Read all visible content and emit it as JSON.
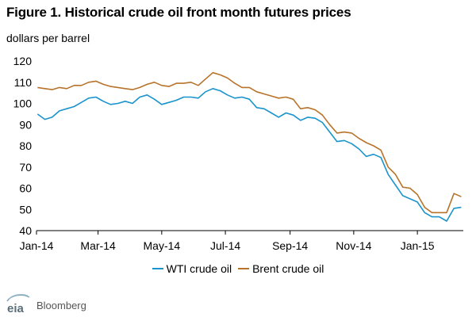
{
  "chart_data": {
    "type": "line",
    "title": "Figure 1. Historical crude oil front month futures prices",
    "ylabel": "dollars per barrel",
    "xlabel": "",
    "ylim": [
      40,
      120
    ],
    "yticks": [
      40,
      50,
      60,
      70,
      80,
      90,
      100,
      110,
      120
    ],
    "xlim": [
      "2014-01-01",
      "2015-02-14"
    ],
    "xticks": [
      {
        "date": "2014-01-01",
        "label": "Jan-14"
      },
      {
        "date": "2014-03-01",
        "label": "Mar-14"
      },
      {
        "date": "2014-05-01",
        "label": "May-14"
      },
      {
        "date": "2014-07-01",
        "label": "Jul-14"
      },
      {
        "date": "2014-09-01",
        "label": "Sep-14"
      },
      {
        "date": "2014-11-01",
        "label": "Nov-14"
      },
      {
        "date": "2015-01-01",
        "label": "Jan-15"
      }
    ],
    "grid": false,
    "legend_position": "bottom",
    "series": [
      {
        "name": "WTI crude oil",
        "color": "#1a94cc",
        "x": [
          "2014-01-02",
          "2014-01-09",
          "2014-01-16",
          "2014-01-23",
          "2014-01-30",
          "2014-02-06",
          "2014-02-13",
          "2014-02-20",
          "2014-02-27",
          "2014-03-06",
          "2014-03-13",
          "2014-03-20",
          "2014-03-27",
          "2014-04-03",
          "2014-04-10",
          "2014-04-17",
          "2014-04-24",
          "2014-05-01",
          "2014-05-08",
          "2014-05-15",
          "2014-05-22",
          "2014-05-29",
          "2014-06-05",
          "2014-06-12",
          "2014-06-19",
          "2014-06-26",
          "2014-07-03",
          "2014-07-10",
          "2014-07-17",
          "2014-07-24",
          "2014-07-31",
          "2014-08-07",
          "2014-08-14",
          "2014-08-21",
          "2014-08-28",
          "2014-09-04",
          "2014-09-11",
          "2014-09-18",
          "2014-09-25",
          "2014-10-02",
          "2014-10-09",
          "2014-10-16",
          "2014-10-23",
          "2014-10-30",
          "2014-11-06",
          "2014-11-13",
          "2014-11-20",
          "2014-11-27",
          "2014-12-04",
          "2014-12-11",
          "2014-12-18",
          "2014-12-25",
          "2015-01-01",
          "2015-01-08",
          "2015-01-15",
          "2015-01-22",
          "2015-01-29",
          "2015-02-05",
          "2015-02-12"
        ],
        "values": [
          95.0,
          92.5,
          93.5,
          96.5,
          97.5,
          98.5,
          100.5,
          102.5,
          103.0,
          101.0,
          99.5,
          100.0,
          101.0,
          100.0,
          103.0,
          104.0,
          102.0,
          99.5,
          100.5,
          101.5,
          103.0,
          103.0,
          102.5,
          105.5,
          107.0,
          106.0,
          104.0,
          102.5,
          103.0,
          102.0,
          98.0,
          97.5,
          95.5,
          93.5,
          95.5,
          94.5,
          92.0,
          93.5,
          93.0,
          91.0,
          86.5,
          82.0,
          82.5,
          81.0,
          78.5,
          75.0,
          76.0,
          74.5,
          66.5,
          61.5,
          56.5,
          55.0,
          53.5,
          48.5,
          46.5,
          46.5,
          44.5,
          50.5,
          51.0
        ]
      },
      {
        "name": "Brent crude oil",
        "color": "#b8732a",
        "x": [
          "2014-01-02",
          "2014-01-09",
          "2014-01-16",
          "2014-01-23",
          "2014-01-30",
          "2014-02-06",
          "2014-02-13",
          "2014-02-20",
          "2014-02-27",
          "2014-03-06",
          "2014-03-13",
          "2014-03-20",
          "2014-03-27",
          "2014-04-03",
          "2014-04-10",
          "2014-04-17",
          "2014-04-24",
          "2014-05-01",
          "2014-05-08",
          "2014-05-15",
          "2014-05-22",
          "2014-05-29",
          "2014-06-05",
          "2014-06-12",
          "2014-06-19",
          "2014-06-26",
          "2014-07-03",
          "2014-07-10",
          "2014-07-17",
          "2014-07-24",
          "2014-07-31",
          "2014-08-07",
          "2014-08-14",
          "2014-08-21",
          "2014-08-28",
          "2014-09-04",
          "2014-09-11",
          "2014-09-18",
          "2014-09-25",
          "2014-10-02",
          "2014-10-09",
          "2014-10-16",
          "2014-10-23",
          "2014-10-30",
          "2014-11-06",
          "2014-11-13",
          "2014-11-20",
          "2014-11-27",
          "2014-12-04",
          "2014-12-11",
          "2014-12-18",
          "2014-12-25",
          "2015-01-01",
          "2015-01-08",
          "2015-01-15",
          "2015-01-22",
          "2015-01-29",
          "2015-02-05",
          "2015-02-12"
        ],
        "values": [
          107.5,
          107.0,
          106.5,
          107.5,
          107.0,
          108.5,
          108.5,
          110.0,
          110.5,
          109.0,
          108.0,
          107.5,
          107.0,
          106.5,
          107.5,
          109.0,
          110.0,
          108.5,
          108.0,
          109.5,
          109.5,
          110.0,
          108.5,
          111.5,
          114.5,
          113.5,
          112.0,
          109.5,
          107.5,
          107.5,
          105.5,
          104.5,
          103.5,
          102.5,
          103.0,
          102.0,
          97.5,
          98.0,
          97.0,
          94.5,
          90.0,
          86.0,
          86.5,
          86.0,
          83.5,
          81.5,
          80.0,
          78.0,
          70.0,
          66.5,
          60.5,
          60.0,
          57.0,
          51.0,
          48.5,
          48.5,
          48.5,
          57.5,
          56.0
        ]
      }
    ]
  },
  "source": {
    "logo_name": "eia",
    "text": "Bloomberg"
  }
}
